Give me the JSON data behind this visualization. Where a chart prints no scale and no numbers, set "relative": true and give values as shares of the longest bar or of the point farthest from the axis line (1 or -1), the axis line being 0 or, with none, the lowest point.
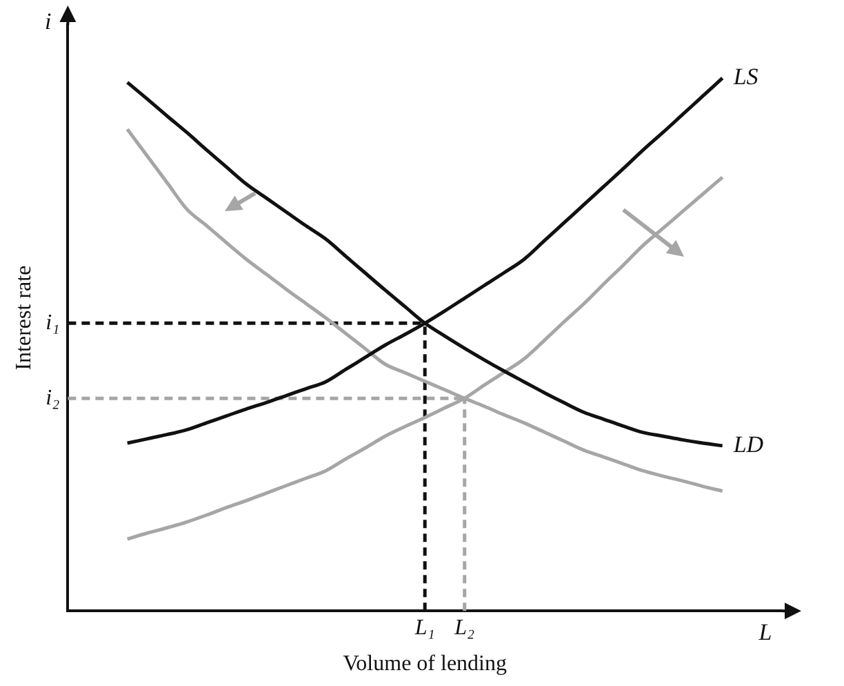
{
  "chart_data": {
    "type": "line",
    "xlabel": "Volume of lending",
    "ylabel": "Interest rate",
    "relative": true,
    "categories": [
      null,
      null,
      null,
      null,
      null,
      null,
      null,
      null,
      null,
      null,
      null,
      null,
      null,
      null,
      null,
      null,
      null,
      null,
      "L₁",
      null,
      "L₂",
      null,
      null,
      null,
      null,
      null,
      null,
      null,
      null,
      null,
      null,
      null,
      null,
      null,
      null,
      null,
      null
    ],
    "grid": false,
    "legend": false,
    "marker": "none",
    "annotations": [
      "i",
      "L"
    ],
    "ref_lines": [
      {
        "axis": "y",
        "value": 0.54,
        "label": "i₁",
        "color": "#111111",
        "line_style": "dashed"
      },
      {
        "axis": "y",
        "value": 0.399,
        "label": "i₂",
        "color": "#a6a6a6",
        "line_style": "dashed"
      },
      {
        "axis": "x",
        "value": "L₁",
        "color": "#111111",
        "line_style": "dashed"
      },
      {
        "axis": "x",
        "value": "L₂",
        "color": "#a6a6a6",
        "line_style": "dashed"
      }
    ],
    "series": [
      {
        "name": "LD",
        "color": "#111111",
        "values": [
          null,
          null,
          null,
          0.992,
          0.961,
          0.929,
          0.898,
          0.865,
          0.833,
          0.801,
          0.775,
          0.749,
          0.723,
          0.698,
          0.666,
          0.634,
          0.602,
          0.571,
          0.54,
          0.516,
          0.493,
          0.471,
          0.45,
          0.43,
          0.41,
          0.391,
          0.373,
          0.36,
          0.347,
          0.335,
          0.328,
          0.321,
          0.315,
          0.31,
          null,
          null,
          null
        ]
      },
      {
        "name": "LS",
        "color": "#111111",
        "values": [
          null,
          null,
          null,
          0.315,
          0.323,
          0.331,
          0.34,
          0.353,
          0.366,
          0.379,
          0.391,
          0.404,
          0.417,
          0.43,
          0.453,
          0.476,
          0.499,
          0.519,
          0.54,
          0.563,
          0.587,
          0.611,
          0.635,
          0.66,
          0.694,
          0.728,
          0.762,
          0.796,
          0.83,
          0.865,
          0.898,
          0.932,
          0.966,
          1,
          null,
          null,
          null
        ]
      },
      {
        "color": "#a6a6a6",
        "values": [
          null,
          null,
          null,
          0.904,
          0.854,
          0.804,
          0.754,
          0.723,
          0.691,
          0.66,
          0.632,
          0.604,
          0.577,
          0.55,
          0.521,
          0.492,
          0.463,
          0.447,
          0.431,
          0.415,
          0.399,
          0.384,
          0.368,
          0.353,
          0.336,
          0.319,
          0.302,
          0.289,
          0.276,
          0.263,
          0.253,
          0.244,
          0.234,
          0.225,
          null,
          null,
          null
        ]
      },
      {
        "color": "#a6a6a6",
        "values": [
          null,
          null,
          null,
          0.135,
          0.146,
          0.156,
          0.167,
          0.18,
          0.194,
          0.207,
          0.221,
          0.235,
          0.249,
          0.263,
          0.285,
          0.306,
          0.328,
          0.346,
          0.363,
          0.381,
          0.399,
          0.424,
          0.448,
          0.473,
          0.507,
          0.542,
          0.576,
          0.613,
          0.649,
          0.686,
          0.718,
          0.75,
          0.782,
          0.814,
          null,
          null,
          null
        ]
      }
    ]
  }
}
